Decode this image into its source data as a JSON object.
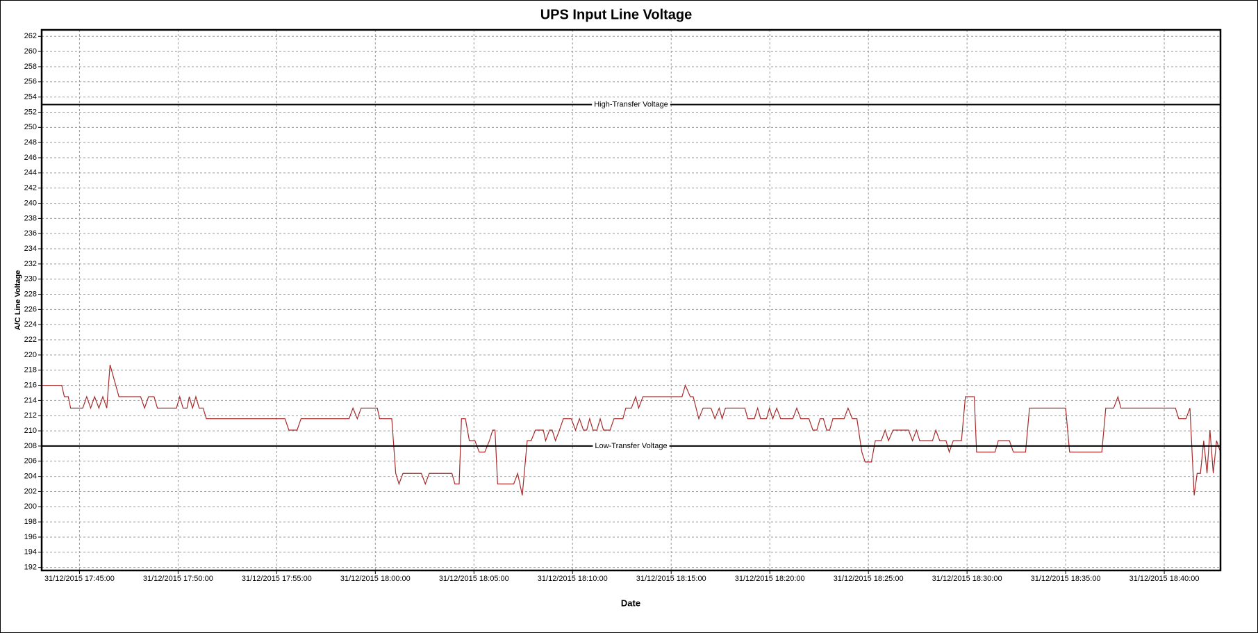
{
  "chart_data": {
    "type": "line",
    "title": "UPS Input Line Voltage",
    "x_label": "Date",
    "y_label": "A/C Line Voltage",
    "color": "#a52a2a",
    "grid": true,
    "xlim": [
      "31/12/2015 17:43:05",
      "31/12/2015 18:42:51"
    ],
    "xticks": [
      "31/12/2015 17:45:00",
      "31/12/2015 17:50:00",
      "31/12/2015 17:55:00",
      "31/12/2015 18:00:00",
      "31/12/2015 18:05:00",
      "31/12/2015 18:10:00",
      "31/12/2015 18:15:00",
      "31/12/2015 18:20:00",
      "31/12/2015 18:25:00",
      "31/12/2015 18:30:00",
      "31/12/2015 18:35:00",
      "31/12/2015 18:40:00"
    ],
    "ylim": [
      191.6,
      262.85
    ],
    "yticks": [
      192,
      194,
      196,
      198,
      200,
      202,
      204,
      206,
      208,
      210,
      212,
      214,
      216,
      218,
      220,
      222,
      224,
      226,
      228,
      230,
      232,
      234,
      236,
      238,
      240,
      242,
      244,
      246,
      248,
      250,
      252,
      254,
      256,
      258,
      260,
      262
    ],
    "reference_lines": [
      {
        "label": "High-Transfer Voltage",
        "value": 253
      },
      {
        "label": "Low-Transfer Voltage",
        "value": 208
      }
    ],
    "x": [
      "31/12/2015 17:43:05",
      "31/12/2015 17:43:13",
      "31/12/2015 17:44:06",
      "31/12/2015 17:44:14",
      "31/12/2015 17:44:26",
      "31/12/2015 17:44:33",
      "31/12/2015 17:45:10",
      "31/12/2015 17:45:22",
      "31/12/2015 17:45:34",
      "31/12/2015 17:45:46",
      "31/12/2015 17:45:59",
      "31/12/2015 17:46:11",
      "31/12/2015 17:46:23",
      "31/12/2015 17:46:33",
      "31/12/2015 17:47:00",
      "31/12/2015 17:48:06",
      "31/12/2015 17:48:18",
      "31/12/2015 17:48:30",
      "31/12/2015 17:48:47",
      "31/12/2015 17:48:57",
      "31/12/2015 17:49:55",
      "31/12/2015 17:50:05",
      "31/12/2015 17:50:15",
      "31/12/2015 17:50:27",
      "31/12/2015 17:50:34",
      "31/12/2015 17:50:44",
      "31/12/2015 17:50:54",
      "31/12/2015 17:51:04",
      "31/12/2015 17:51:16",
      "31/12/2015 17:51:26",
      "31/12/2015 17:55:25",
      "31/12/2015 17:55:37",
      "31/12/2015 17:56:02",
      "31/12/2015 17:56:14",
      "31/12/2015 17:58:40",
      "31/12/2015 17:58:52",
      "31/12/2015 17:59:05",
      "31/12/2015 17:59:17",
      "31/12/2015 18:00:06",
      "31/12/2015 18:00:13",
      "31/12/2015 18:00:50",
      "31/12/2015 18:01:02",
      "31/12/2015 18:01:12",
      "31/12/2015 18:01:24",
      "31/12/2015 18:02:20",
      "31/12/2015 18:02:32",
      "31/12/2015 18:02:44",
      "31/12/2015 18:03:53",
      "31/12/2015 18:04:02",
      "31/12/2015 18:04:15",
      "31/12/2015 18:04:22",
      "31/12/2015 18:04:34",
      "31/12/2015 18:04:46",
      "31/12/2015 18:05:03",
      "31/12/2015 18:05:16",
      "31/12/2015 18:05:33",
      "31/12/2015 18:05:47",
      "31/12/2015 18:05:57",
      "31/12/2015 18:06:04",
      "31/12/2015 18:06:12",
      "31/12/2015 18:07:01",
      "31/12/2015 18:07:13",
      "31/12/2015 18:07:27",
      "31/12/2015 18:07:42",
      "31/12/2015 18:07:54",
      "31/12/2015 18:08:07",
      "31/12/2015 18:08:31",
      "31/12/2015 18:08:38",
      "31/12/2015 18:08:50",
      "31/12/2015 18:08:58",
      "31/12/2015 18:09:08",
      "31/12/2015 18:09:20",
      "31/12/2015 18:09:32",
      "31/12/2015 18:09:56",
      "31/12/2015 18:10:09",
      "31/12/2015 18:10:21",
      "31/12/2015 18:10:33",
      "31/12/2015 18:10:43",
      "31/12/2015 18:10:52",
      "31/12/2015 18:11:02",
      "31/12/2015 18:11:14",
      "31/12/2015 18:11:24",
      "31/12/2015 18:11:34",
      "31/12/2015 18:11:54",
      "31/12/2015 18:12:06",
      "31/12/2015 18:12:33",
      "31/12/2015 18:12:42",
      "31/12/2015 18:12:59",
      "31/12/2015 18:13:12",
      "31/12/2015 18:13:21",
      "31/12/2015 18:13:34",
      "31/12/2015 18:15:33",
      "31/12/2015 18:15:43",
      "31/12/2015 18:15:58",
      "31/12/2015 18:16:07",
      "31/12/2015 18:16:24",
      "31/12/2015 18:16:37",
      "31/12/2015 18:17:01",
      "31/12/2015 18:17:13",
      "31/12/2015 18:17:26",
      "31/12/2015 18:17:35",
      "31/12/2015 18:17:45",
      "31/12/2015 18:18:44",
      "31/12/2015 18:18:53",
      "31/12/2015 18:19:13",
      "31/12/2015 18:19:23",
      "31/12/2015 18:19:32",
      "31/12/2015 18:19:50",
      "31/12/2015 18:19:59",
      "31/12/2015 18:20:09",
      "31/12/2015 18:20:21",
      "31/12/2015 18:20:33",
      "31/12/2015 18:21:10",
      "31/12/2015 18:21:22",
      "31/12/2015 18:21:34",
      "31/12/2015 18:21:59",
      "31/12/2015 18:22:11",
      "31/12/2015 18:22:23",
      "31/12/2015 18:22:33",
      "31/12/2015 18:22:43",
      "31/12/2015 18:22:53",
      "31/12/2015 18:23:02",
      "31/12/2015 18:23:12",
      "31/12/2015 18:23:46",
      "31/12/2015 18:23:58",
      "31/12/2015 18:24:11",
      "31/12/2015 18:24:25",
      "31/12/2015 18:24:40",
      "31/12/2015 18:24:50",
      "31/12/2015 18:25:09",
      "31/12/2015 18:25:21",
      "31/12/2015 18:25:39",
      "31/12/2015 18:25:51",
      "31/12/2015 18:26:01",
      "31/12/2015 18:26:15",
      "31/12/2015 18:27:02",
      "31/12/2015 18:27:14",
      "31/12/2015 18:27:26",
      "31/12/2015 18:27:36",
      "31/12/2015 18:28:15",
      "31/12/2015 18:28:25",
      "31/12/2015 18:28:37",
      "31/12/2015 18:28:56",
      "31/12/2015 18:29:06",
      "31/12/2015 18:29:18",
      "31/12/2015 18:29:43",
      "31/12/2015 18:29:55",
      "31/12/2015 18:30:22",
      "31/12/2015 18:30:29",
      "31/12/2015 18:31:25",
      "31/12/2015 18:31:35",
      "31/12/2015 18:32:09",
      "31/12/2015 18:32:21",
      "31/12/2015 18:32:58",
      "31/12/2015 18:33:10",
      "31/12/2015 18:35:00",
      "31/12/2015 18:35:12",
      "31/12/2015 18:36:50",
      "31/12/2015 18:37:02",
      "31/12/2015 18:37:26",
      "31/12/2015 18:37:39",
      "31/12/2015 18:37:48",
      "31/12/2015 18:40:34",
      "31/12/2015 18:40:44",
      "31/12/2015 18:41:06",
      "31/12/2015 18:41:18",
      "31/12/2015 18:41:31",
      "31/12/2015 18:41:40",
      "31/12/2015 18:41:50",
      "31/12/2015 18:42:00",
      "31/12/2015 18:42:10",
      "31/12/2015 18:42:19",
      "31/12/2015 18:42:29",
      "31/12/2015 18:42:39",
      "31/12/2015 18:42:51"
    ],
    "values": [
      216,
      216,
      216,
      214.5,
      214.5,
      213,
      213,
      214.5,
      213,
      214.5,
      213,
      214.5,
      213,
      218.7,
      214.5,
      214.5,
      213,
      214.5,
      214.5,
      213,
      213,
      214.5,
      213,
      213,
      214.5,
      213,
      214.5,
      213,
      213,
      211.6,
      211.6,
      210.1,
      210.1,
      211.6,
      211.6,
      213,
      211.6,
      213,
      213,
      211.6,
      211.6,
      204.4,
      203,
      204.4,
      204.4,
      203,
      204.4,
      204.4,
      203,
      203,
      211.6,
      211.6,
      208.7,
      208.7,
      207.2,
      207.2,
      208.7,
      210.1,
      210.1,
      203,
      203,
      204.4,
      201.5,
      208.7,
      208.7,
      210.1,
      210.1,
      208.7,
      210.1,
      210.1,
      208.7,
      210.1,
      211.6,
      211.6,
      210.1,
      211.6,
      210.1,
      210.1,
      211.6,
      210.1,
      210.1,
      211.6,
      210.1,
      210.1,
      211.6,
      211.6,
      213,
      213,
      214.5,
      213,
      214.5,
      214.5,
      216,
      214.5,
      214.5,
      211.6,
      213,
      213,
      211.6,
      213,
      211.6,
      213,
      213,
      211.6,
      211.6,
      213,
      211.6,
      211.6,
      213,
      211.6,
      213,
      211.6,
      211.6,
      213,
      211.6,
      211.6,
      210.1,
      210.1,
      211.6,
      211.6,
      210.1,
      210.1,
      211.6,
      211.6,
      213,
      211.6,
      211.6,
      207.2,
      205.9,
      205.9,
      208.7,
      208.7,
      210.1,
      208.7,
      210.1,
      210.1,
      208.7,
      210.1,
      208.7,
      208.7,
      210.1,
      208.7,
      208.7,
      207.2,
      208.7,
      208.7,
      214.5,
      214.5,
      207.2,
      207.2,
      208.7,
      208.7,
      207.2,
      207.2,
      213,
      213,
      207.2,
      207.2,
      213,
      213,
      214.5,
      213,
      213,
      211.6,
      211.6,
      213,
      201.5,
      204.4,
      204.4,
      208.7,
      204.4,
      210.1,
      204.4,
      208.7,
      207.2
    ]
  }
}
